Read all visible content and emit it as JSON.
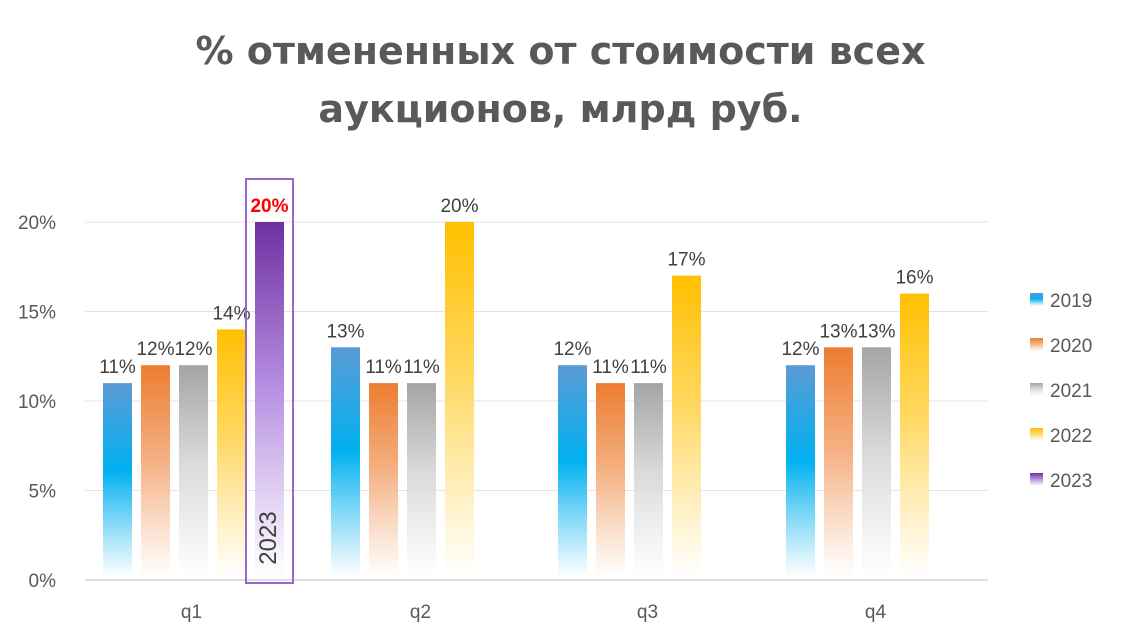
{
  "chart_data": {
    "type": "bar",
    "title_lines": [
      "% отмененных от стоимости всех",
      "аукционов, млрд руб."
    ],
    "categories": [
      "q1",
      "q2",
      "q3",
      "q4"
    ],
    "y_ticks": [
      "0%",
      "5%",
      "10%",
      "15%",
      "20%"
    ],
    "ylim": [
      0,
      20
    ],
    "grid": true,
    "legend_position": "right",
    "series": [
      {
        "name": "2019",
        "color_top": "#5b9bd5",
        "color_mid": "#00b0f0",
        "values": [
          11,
          13,
          12,
          12
        ],
        "labels": [
          "11%",
          "13%",
          "12%",
          "12%"
        ]
      },
      {
        "name": "2020",
        "color_top": "#ed7d31",
        "color_mid": "#f4b183",
        "values": [
          12,
          11,
          11,
          13
        ],
        "labels": [
          "12%",
          "11%",
          "11%",
          "13%"
        ]
      },
      {
        "name": "2021",
        "color_top": "#a5a5a5",
        "color_mid": "#d9d9d9",
        "values": [
          12,
          11,
          11,
          13
        ],
        "labels": [
          "12%",
          "11%",
          "11%",
          "13%"
        ]
      },
      {
        "name": "2022",
        "color_top": "#ffc000",
        "color_mid": "#ffd966",
        "values": [
          14,
          20,
          17,
          16
        ],
        "labels": [
          "14%",
          "20%",
          "17%",
          "16%"
        ]
      },
      {
        "name": "2023",
        "color_top": "#7030a0",
        "color_mid": "#b38be0",
        "values": [
          20,
          null,
          null,
          null
        ],
        "labels": [
          "20%",
          null,
          null,
          null
        ]
      }
    ],
    "highlight": {
      "series": "2023",
      "category": "q1",
      "label_color": "#ff0000",
      "box_color": "#9966cc",
      "inner_text": "2023"
    }
  }
}
